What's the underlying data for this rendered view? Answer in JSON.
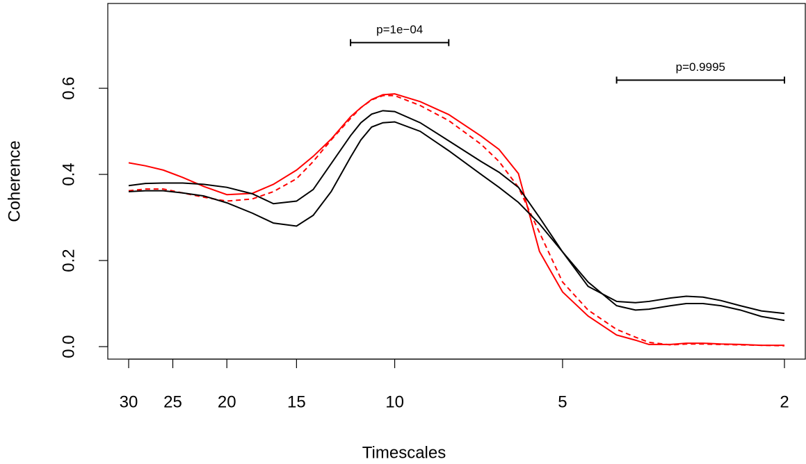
{
  "chart_data": {
    "type": "line",
    "xlabel": "Timescales",
    "ylabel": "Coherence",
    "xscale": "log",
    "xlim": [
      32.7,
      1.835
    ],
    "ylim": [
      -0.029,
      0.797
    ],
    "xticks": [
      30,
      25,
      20,
      15,
      10,
      5,
      2
    ],
    "yticks": [
      {
        "value": 0,
        "label": "0.0"
      },
      0.2,
      0.4,
      0.6
    ],
    "x": [
      30,
      28,
      26,
      24,
      22,
      20,
      18,
      16.5,
      15,
      14,
      13,
      12,
      11.5,
      11,
      10.5,
      10,
      9,
      8,
      7,
      6.5,
      6,
      5.5,
      5,
      4.5,
      4,
      3.7,
      3.5,
      3.2,
      3,
      2.8,
      2.6,
      2.4,
      2.2,
      2
    ],
    "series": [
      {
        "color": "#ff0000",
        "dashed": false,
        "values": [
          0.427,
          0.42,
          0.41,
          0.393,
          0.372,
          0.353,
          0.356,
          0.377,
          0.41,
          0.442,
          0.482,
          0.534,
          0.555,
          0.574,
          0.585,
          0.587,
          0.569,
          0.539,
          0.489,
          0.458,
          0.402,
          0.221,
          0.127,
          0.071,
          0.027,
          0.015,
          0.005,
          0.005,
          0.008,
          0.008,
          0.006,
          0.005,
          0.003,
          0.003
        ]
      },
      {
        "color": "#ff0000",
        "dashed": true,
        "values": [
          0.362,
          0.366,
          0.366,
          0.357,
          0.347,
          0.338,
          0.343,
          0.36,
          0.39,
          0.43,
          0.48,
          0.53,
          0.555,
          0.573,
          0.583,
          0.583,
          0.56,
          0.525,
          0.47,
          0.43,
          0.37,
          0.265,
          0.15,
          0.085,
          0.04,
          0.022,
          0.01,
          0.004,
          0.006,
          0.006,
          0.005,
          0.004,
          0.003,
          0.002
        ]
      },
      {
        "color": "#000000",
        "dashed": false,
        "values": [
          0.374,
          0.379,
          0.38,
          0.38,
          0.377,
          0.37,
          0.355,
          0.332,
          0.338,
          0.365,
          0.425,
          0.49,
          0.52,
          0.54,
          0.548,
          0.546,
          0.52,
          0.478,
          0.43,
          0.405,
          0.37,
          0.3,
          0.22,
          0.14,
          0.105,
          0.102,
          0.105,
          0.113,
          0.117,
          0.115,
          0.107,
          0.095,
          0.083,
          0.077
        ]
      },
      {
        "color": "#000000",
        "dashed": false,
        "values": [
          0.36,
          0.362,
          0.362,
          0.357,
          0.35,
          0.334,
          0.31,
          0.287,
          0.28,
          0.305,
          0.36,
          0.44,
          0.48,
          0.51,
          0.52,
          0.522,
          0.5,
          0.455,
          0.4,
          0.37,
          0.335,
          0.285,
          0.22,
          0.15,
          0.095,
          0.085,
          0.087,
          0.095,
          0.1,
          0.1,
          0.095,
          0.085,
          0.07,
          0.061
        ]
      }
    ],
    "annotations": [
      {
        "text": "p=1e−04",
        "x": [
          12,
          8
        ],
        "y": 0.706
      },
      {
        "text": "p=0.9995",
        "x": [
          4,
          2
        ],
        "y": 0.619
      }
    ]
  }
}
